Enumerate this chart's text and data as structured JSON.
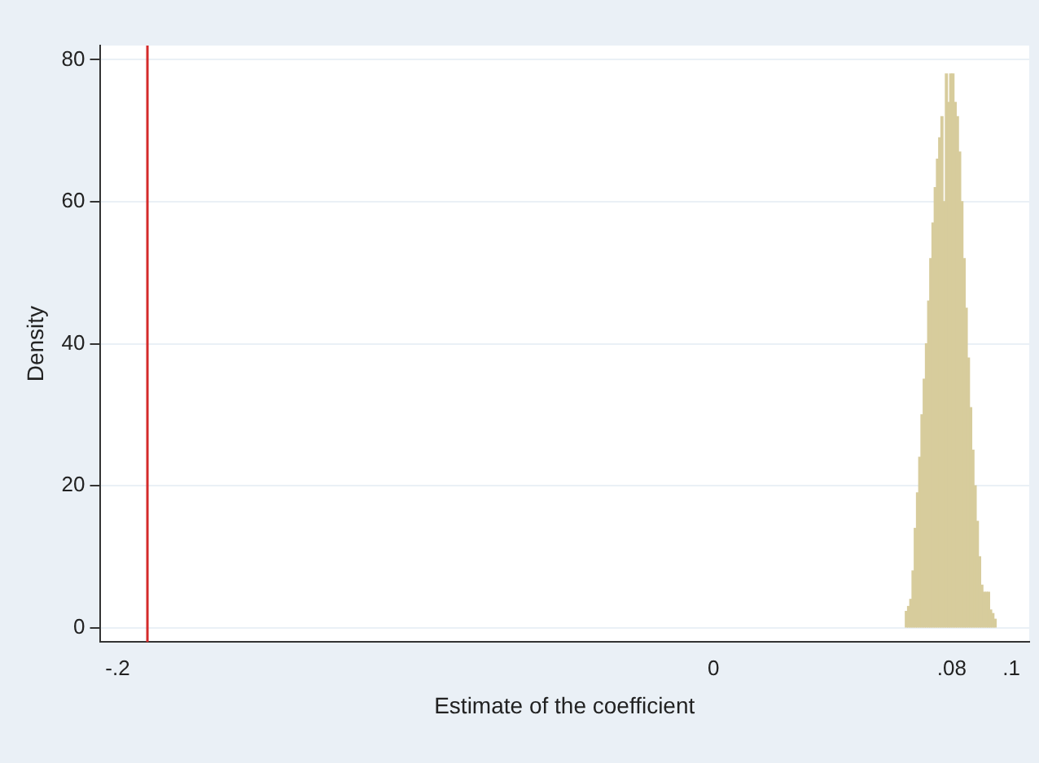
{
  "chart_data": {
    "type": "histogram",
    "xlabel": "Estimate of the coefficient",
    "ylabel": "Density",
    "color": "#d7cc9c",
    "bins": [
      0.0644,
      0.0651,
      0.0659,
      0.0666,
      0.0674,
      0.0681,
      0.0689,
      0.0696,
      0.0704,
      0.0711,
      0.0719,
      0.0726,
      0.0733,
      0.0741,
      0.0748,
      0.0756,
      0.0763,
      0.0771,
      0.0778,
      0.0786,
      0.0793,
      0.08,
      0.0808,
      0.0815,
      0.0823,
      0.083,
      0.0838,
      0.0845,
      0.0852,
      0.086,
      0.0867,
      0.0875,
      0.0882,
      0.089,
      0.0897,
      0.0905,
      0.0912,
      0.092,
      0.0927,
      0.0934,
      0.0942,
      0.0949
    ],
    "values": [
      2.3,
      3,
      4,
      8,
      14,
      19,
      24,
      30,
      35,
      40,
      46,
      52,
      57,
      62,
      66,
      69,
      72,
      60,
      78,
      74,
      78,
      78,
      74,
      72,
      67,
      60,
      52,
      45,
      38,
      31,
      25,
      20,
      15,
      10,
      6,
      5,
      5,
      5,
      2.5,
      2,
      1.2
    ],
    "xlim": [
      -0.206,
      0.106
    ],
    "xticks": [
      {
        "value": -0.2,
        "label": "-.2"
      },
      {
        "value": 0,
        "label": "0"
      },
      {
        "value": 0.08,
        "label": ".08"
      },
      {
        "value": 0.1,
        "label": ".1"
      }
    ],
    "ylim": [
      -2,
      82
    ],
    "yticks": [
      0,
      20,
      40,
      60,
      80
    ],
    "grid": "y",
    "legend": false,
    "ref_lines": [
      {
        "axis": "x",
        "value": -0.19,
        "color": "#d42a2a"
      }
    ]
  }
}
